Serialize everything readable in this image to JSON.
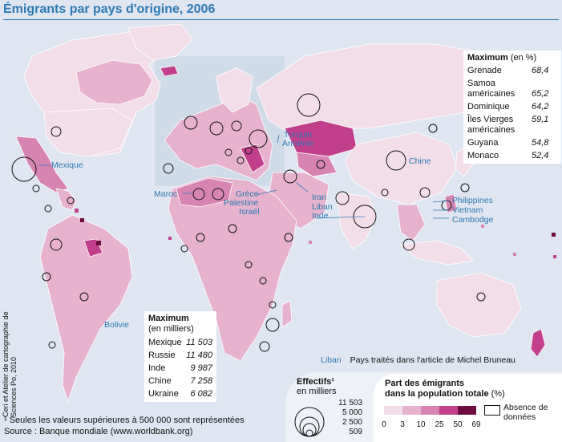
{
  "title": "Émigrants par pays d'origine, 2006",
  "colors": {
    "class_0_3": "#f3dde9",
    "class_3_10": "#e6b2ce",
    "class_10_25": "#d884b2",
    "class_25_50": "#c23f8c",
    "class_50_69": "#6e0c40",
    "sea": "#dfe6f1",
    "accent": "#2d79b4"
  },
  "max_pct": {
    "heading": "Maximum",
    "unit": "(en %)",
    "rows": [
      {
        "name": "Grenade",
        "value": "68,4"
      },
      {
        "name": "Samoa américaines",
        "value": "65,2"
      },
      {
        "name": "Dominique",
        "value": "64,2"
      },
      {
        "name": "Îles Vierges américaines",
        "value": "59,1"
      },
      {
        "name": "Guyana",
        "value": "54,8"
      },
      {
        "name": "Monaco",
        "value": "52,4"
      }
    ]
  },
  "max_k": {
    "heading": "Maximum",
    "unit": "(en milliers)",
    "rows": [
      {
        "name": "Mexique",
        "value": "11 503"
      },
      {
        "name": "Russie",
        "value": "11 480"
      },
      {
        "name": "Inde",
        "value": "9 987"
      },
      {
        "name": "Chine",
        "value": "7 258"
      },
      {
        "name": "Ukraine",
        "value": "6 082"
      }
    ]
  },
  "labels": {
    "mexique": "Mexique",
    "chine": "Chine",
    "maroc": "Maroc",
    "grece": "Grèce",
    "palestine": "Palestine",
    "israel": "Israël",
    "turquie": "Turquie",
    "armenie": "Arménie",
    "iran": "Iran",
    "liban": "Liban",
    "inde": "Inde",
    "philippines": "Philippines",
    "vietnam": "Vietnam",
    "cambodge": "Cambodge",
    "bolivie": "Bolivie"
  },
  "credit": "Ceri et Atelier de cartographie de Sciences Po, 2010",
  "legend_note": {
    "sample": "Liban",
    "text": "Pays traités dans l'article de Michel Bruneau"
  },
  "effectifs": {
    "title": "Effectifs¹",
    "unit": "en milliers",
    "values": [
      "11 503",
      "5 000",
      "2 500",
      "509"
    ]
  },
  "share": {
    "title_bold": "Part des émigrants",
    "title_bold2": "dans la population totale",
    "unit": "(%)",
    "breaks": [
      "0",
      "3",
      "10",
      "25",
      "50",
      "69"
    ],
    "no_data": "Absence de données"
  },
  "footnote": "¹ Seules les valeurs supérieures à 500 000 sont représentées",
  "source": "Source : Banque mondiale (www.worldbank.org)"
}
